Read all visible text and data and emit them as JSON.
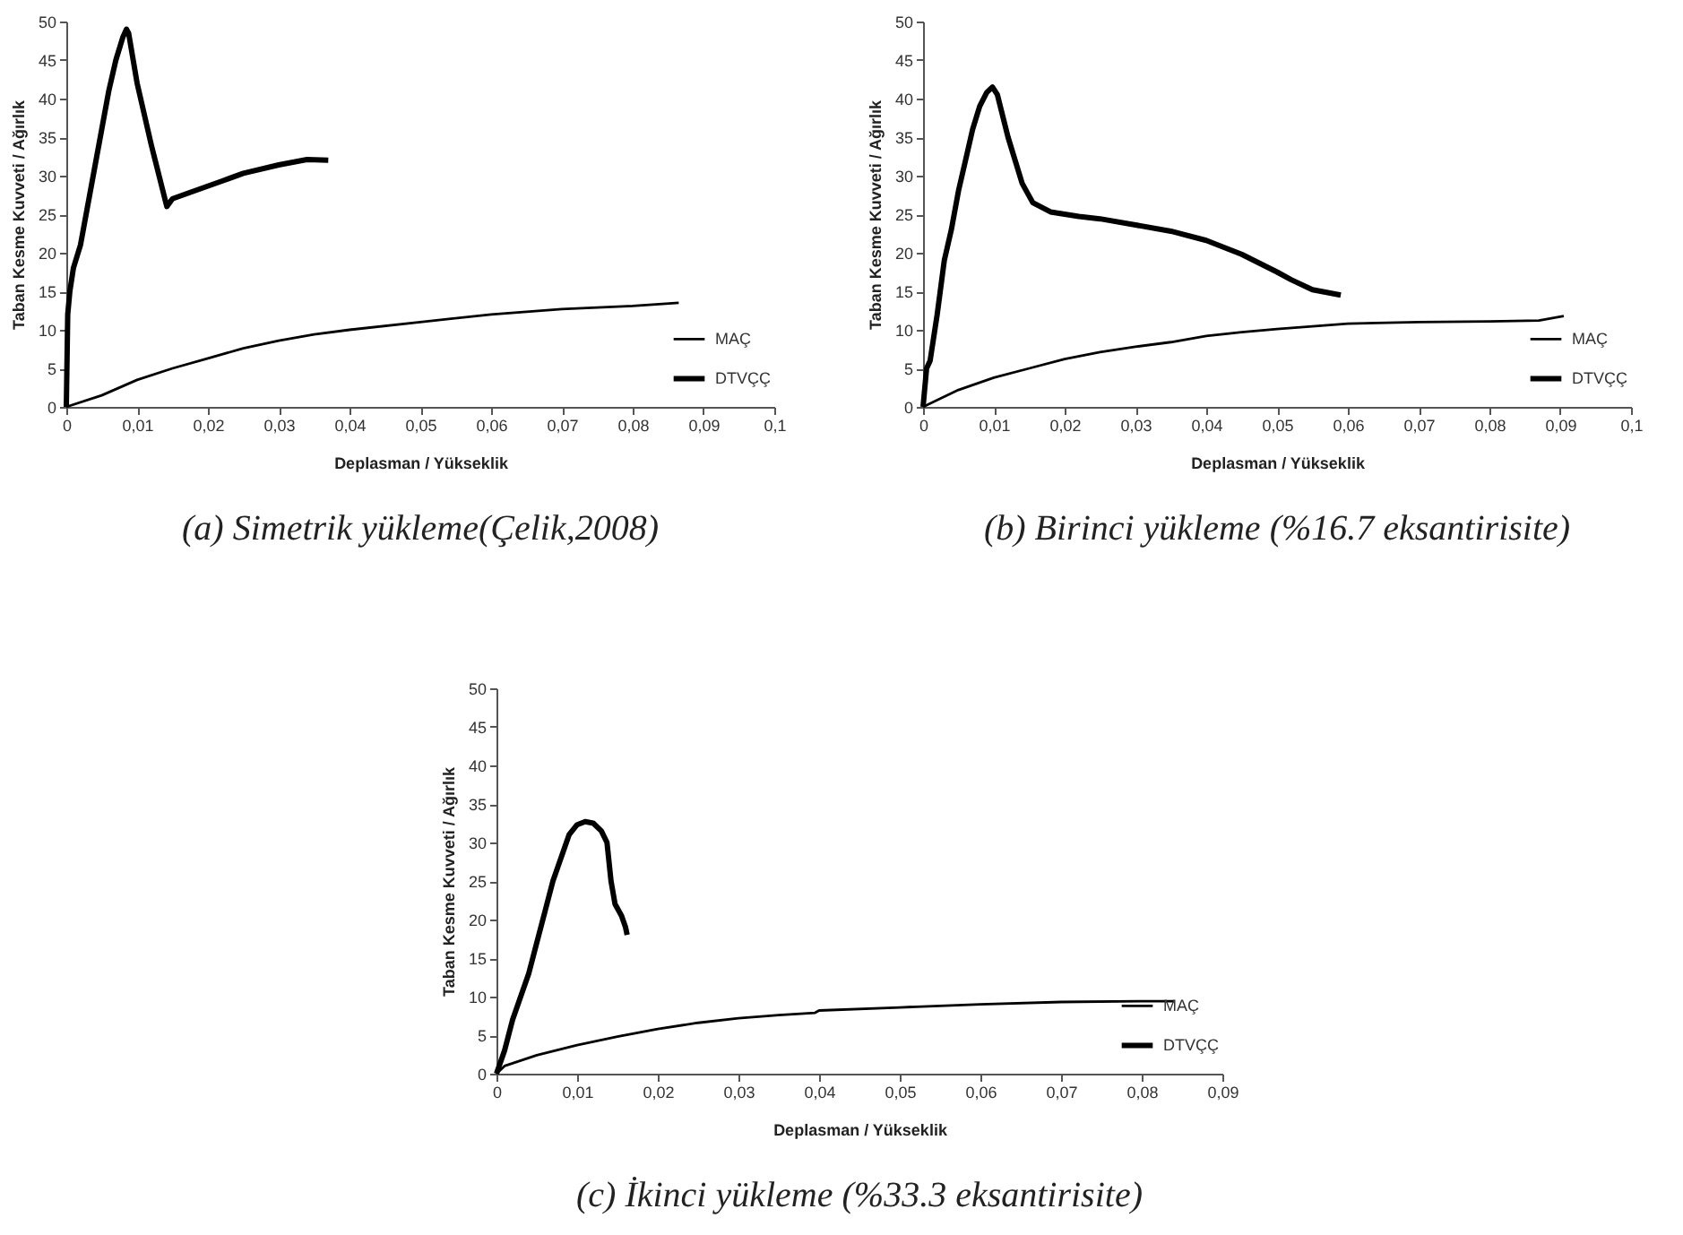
{
  "chart_data": [
    {
      "type": "line",
      "title": "(a) Simetrik yükleme(Çelik,2008)",
      "xlabel": "Deplasman / Yükseklik",
      "ylabel": "Taban Kesme Kuvveti / Ağırlık",
      "legend": "bottom right",
      "grid": false,
      "marker": "none",
      "line_style": "solid",
      "xlim": [
        0,
        0.1
      ],
      "xticks": [
        {
          "value": 0,
          "label": "0"
        },
        {
          "value": 0.01,
          "label": "0,01"
        },
        {
          "value": 0.02,
          "label": "0,02"
        },
        {
          "value": 0.03,
          "label": "0,03"
        },
        {
          "value": 0.04,
          "label": "0,04"
        },
        {
          "value": 0.05,
          "label": "0,05"
        },
        {
          "value": 0.06,
          "label": "0,06"
        },
        {
          "value": 0.07,
          "label": "0,07"
        },
        {
          "value": 0.08,
          "label": "0,08"
        },
        {
          "value": 0.09,
          "label": "0,09"
        },
        {
          "value": 0.1,
          "label": "0,1"
        }
      ],
      "ylim": [
        0,
        50
      ],
      "yticks": [
        0,
        5,
        10,
        15,
        20,
        25,
        30,
        35,
        40,
        45,
        50
      ],
      "series": [
        {
          "name": "MAÇ",
          "color": "#000000",
          "x": [
            0,
            0.005,
            0.01,
            0.015,
            0.02,
            0.025,
            0.03,
            0.035,
            0.04,
            0.05,
            0.06,
            0.07,
            0.08,
            0.0865
          ],
          "values": [
            0,
            1.5,
            3.5,
            5,
            6.3,
            7.6,
            8.6,
            9.4,
            10,
            11,
            12,
            12.7,
            13.1,
            13.5
          ]
        },
        {
          "name": "DTVÇÇ",
          "color": "#000000",
          "x": [
            0,
            0.0002,
            0.0005,
            0.001,
            0.002,
            0.003,
            0.004,
            0.005,
            0.006,
            0.007,
            0.008,
            0.0085,
            0.0088,
            0.01,
            0.012,
            0.0142,
            0.015,
            0.018,
            0.022,
            0.025,
            0.03,
            0.034,
            0.037
          ],
          "values": [
            0,
            12,
            15,
            18,
            21,
            26,
            31,
            36,
            41,
            45,
            48,
            49,
            48.5,
            42,
            34,
            26,
            27,
            28,
            29.3,
            30.3,
            31.4,
            32.1,
            32
          ]
        }
      ]
    },
    {
      "type": "line",
      "title": "(b) Birinci yükleme (%16.7 eksantirisite)",
      "xlabel": "Deplasman / Yükseklik",
      "ylabel": "Taban Kesme Kuvveti / Ağırlık",
      "legend": "bottom right",
      "grid": false,
      "marker": "none",
      "line_style": "solid",
      "xlim": [
        0,
        0.1
      ],
      "xticks": [
        {
          "value": 0,
          "label": "0"
        },
        {
          "value": 0.01,
          "label": "0,01"
        },
        {
          "value": 0.02,
          "label": "0,02"
        },
        {
          "value": 0.03,
          "label": "0,03"
        },
        {
          "value": 0.04,
          "label": "0,04"
        },
        {
          "value": 0.05,
          "label": "0,05"
        },
        {
          "value": 0.06,
          "label": "0,06"
        },
        {
          "value": 0.07,
          "label": "0,07"
        },
        {
          "value": 0.08,
          "label": "0,08"
        },
        {
          "value": 0.09,
          "label": "0,09"
        },
        {
          "value": 0.1,
          "label": "0,1"
        }
      ],
      "ylim": [
        0,
        50
      ],
      "yticks": [
        0,
        5,
        10,
        15,
        20,
        25,
        30,
        35,
        40,
        45,
        50
      ],
      "series": [
        {
          "name": "MAÇ",
          "color": "#000000",
          "x": [
            0,
            0.005,
            0.01,
            0.015,
            0.02,
            0.025,
            0.03,
            0.035,
            0.04,
            0.045,
            0.05,
            0.06,
            0.07,
            0.08,
            0.087,
            0.0905
          ],
          "values": [
            0,
            2.2,
            3.8,
            5,
            6.2,
            7.1,
            7.8,
            8.4,
            9.2,
            9.7,
            10.1,
            10.8,
            11,
            11.1,
            11.2,
            11.8
          ]
        },
        {
          "name": "DTVÇÇ",
          "color": "#000000",
          "x": [
            0,
            0.0005,
            0.001,
            0.002,
            0.003,
            0.004,
            0.005,
            0.006,
            0.007,
            0.008,
            0.009,
            0.0098,
            0.0105,
            0.012,
            0.014,
            0.0155,
            0.018,
            0.022,
            0.025,
            0.03,
            0.035,
            0.04,
            0.045,
            0.05,
            0.052,
            0.055,
            0.059
          ],
          "values": [
            0,
            5,
            6,
            12,
            19,
            23,
            28,
            32,
            36,
            39,
            40.8,
            41.5,
            40.5,
            35,
            29,
            26.5,
            25.3,
            24.7,
            24.4,
            23.6,
            22.8,
            21.6,
            19.8,
            17.5,
            16.5,
            15.2,
            14.5
          ]
        }
      ]
    },
    {
      "type": "line",
      "title": "(c) İkinci yükleme (%33.3 eksantirisite)",
      "xlabel": "Deplasman / Yükseklik",
      "ylabel": "Taban Kesme Kuvveti / Ağırlık",
      "legend": "bottom right",
      "grid": false,
      "marker": "none",
      "line_style": "solid",
      "xlim": [
        0,
        0.09
      ],
      "xticks": [
        {
          "value": 0,
          "label": "0"
        },
        {
          "value": 0.01,
          "label": "0,01"
        },
        {
          "value": 0.02,
          "label": "0,02"
        },
        {
          "value": 0.03,
          "label": "0,03"
        },
        {
          "value": 0.04,
          "label": "0,04"
        },
        {
          "value": 0.05,
          "label": "0,05"
        },
        {
          "value": 0.06,
          "label": "0,06"
        },
        {
          "value": 0.07,
          "label": "0,07"
        },
        {
          "value": 0.08,
          "label": "0,08"
        },
        {
          "value": 0.09,
          "label": "0,09"
        }
      ],
      "ylim": [
        0,
        50
      ],
      "yticks": [
        0,
        5,
        10,
        15,
        20,
        25,
        30,
        35,
        40,
        45,
        50
      ],
      "series": [
        {
          "name": "MAÇ",
          "color": "#000000",
          "x": [
            0,
            0.001,
            0.005,
            0.01,
            0.015,
            0.02,
            0.025,
            0.03,
            0.035,
            0.0395,
            0.04,
            0.05,
            0.06,
            0.07,
            0.08,
            0.084
          ],
          "values": [
            0,
            1,
            2.4,
            3.7,
            4.8,
            5.8,
            6.6,
            7.2,
            7.6,
            7.9,
            8.2,
            8.6,
            9,
            9.3,
            9.4,
            9.4
          ]
        },
        {
          "name": "DTVÇÇ",
          "color": "#000000",
          "x": [
            0,
            0.001,
            0.002,
            0.003,
            0.004,
            0.005,
            0.006,
            0.007,
            0.008,
            0.009,
            0.01,
            0.011,
            0.012,
            0.013,
            0.0137,
            0.0142,
            0.0147,
            0.0155,
            0.016,
            0.0162
          ],
          "values": [
            0,
            3,
            7,
            10,
            13,
            17,
            21,
            25,
            28,
            31,
            32.3,
            32.7,
            32.5,
            31.5,
            30,
            25,
            22,
            20.5,
            19,
            18
          ]
        }
      ]
    }
  ]
}
